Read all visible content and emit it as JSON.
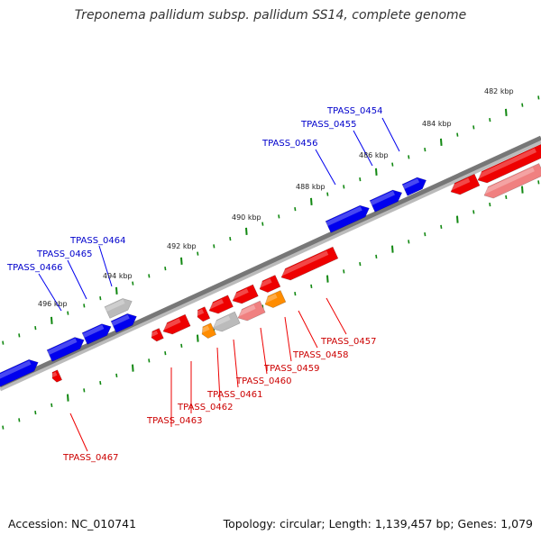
{
  "title": "Treponema pallidum subsp. pallidum SS14, complete genome",
  "footer": {
    "accession": "Accession: NC_010741",
    "summary": "Topology: circular; Length: 1,139,457 bp; Genes: 1,079"
  },
  "colors": {
    "forward": "#0000ee",
    "reverse": "#ee0000",
    "pseudo": "#bbbbbb",
    "rna": "#ff8c00",
    "light_red": "#f08080",
    "backbone": "#777777",
    "tick": "#118811"
  },
  "kbp_labels": [
    "482 kbp",
    "484 kbp",
    "486 kbp",
    "488 kbp",
    "490 kbp",
    "492 kbp",
    "494 kbp",
    "496 kbp"
  ],
  "forward_genes": [
    "TPASS_0454",
    "TPASS_0455",
    "TPASS_0456",
    "TPASS_0464",
    "TPASS_0465",
    "TPASS_0466"
  ],
  "reverse_genes": [
    "TPASS_0457",
    "TPASS_0458",
    "TPASS_0459",
    "TPASS_0460",
    "TPASS_0461",
    "TPASS_0462",
    "TPASS_0463",
    "TPASS_0467"
  ]
}
